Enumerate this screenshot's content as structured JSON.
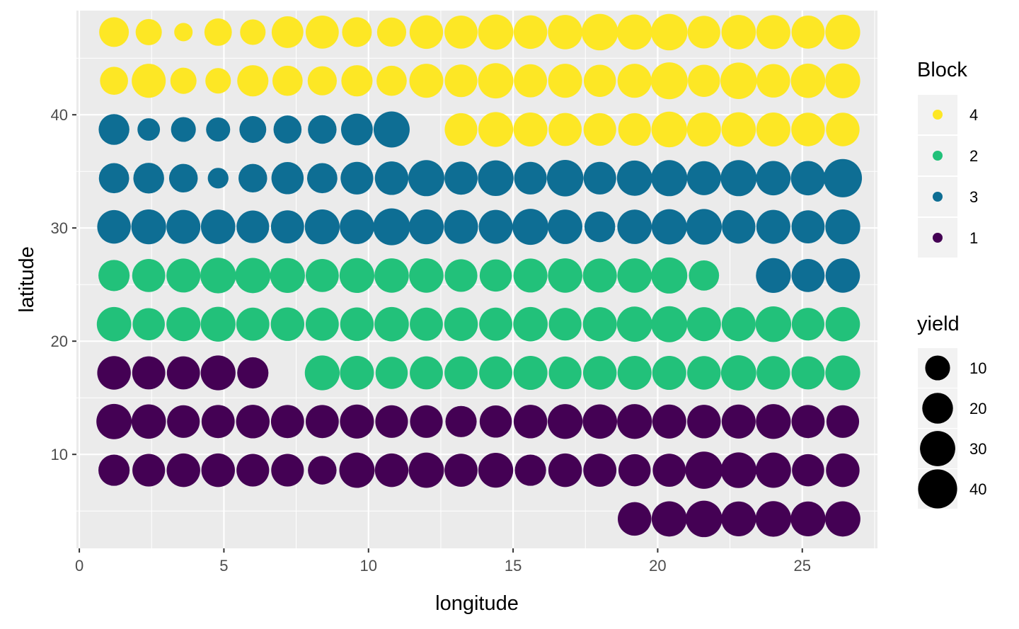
{
  "chart_data": {
    "type": "scatter",
    "xlabel": "longitude",
    "ylabel": "latitude",
    "xlim": [
      -0.1,
      27.6
    ],
    "ylim": [
      1.7,
      49.2
    ],
    "x_ticks": [
      0,
      5,
      10,
      15,
      20,
      25
    ],
    "y_ticks": [
      10,
      20,
      30,
      40
    ],
    "x_tick_labels": [
      "0",
      "5",
      "10",
      "15",
      "20",
      "25"
    ],
    "y_tick_labels": [
      "10",
      "20",
      "30",
      "40"
    ],
    "grid": true,
    "legend_position": "right",
    "color_legend": {
      "title": "Block",
      "entries": [
        {
          "label": "4",
          "color": "#FDE725"
        },
        {
          "label": "2",
          "color": "#22C17A"
        },
        {
          "label": "3",
          "color": "#0E6E94"
        },
        {
          "label": "1",
          "color": "#440154"
        }
      ]
    },
    "size_legend": {
      "title": "yield",
      "entries": [
        {
          "label": "10",
          "value": 10
        },
        {
          "label": "20",
          "value": 20
        },
        {
          "label": "30",
          "value": 30
        },
        {
          "label": "40",
          "value": 40
        }
      ]
    },
    "columns_x": [
      1.2,
      2.4,
      3.6,
      4.8,
      6.0,
      7.2,
      8.4,
      9.6,
      10.8,
      12.0,
      13.2,
      14.4,
      15.6,
      16.8,
      18.0,
      19.2,
      20.4,
      21.6,
      22.8,
      24.0,
      25.2,
      26.4
    ],
    "rows": [
      {
        "lat": 47.3,
        "block": [
          "4",
          "4",
          "4",
          "4",
          "4",
          "4",
          "4",
          "4",
          "4",
          "4",
          "4",
          "4",
          "4",
          "4",
          "4",
          "4",
          "4",
          "4",
          "4",
          "4",
          "4",
          "4"
        ],
        "yield": [
          18,
          12,
          3,
          14,
          11,
          22,
          25,
          18,
          17,
          26,
          25,
          30,
          26,
          28,
          33,
          30,
          33,
          24,
          28,
          27,
          25,
          29
        ]
      },
      {
        "lat": 43.0,
        "block": [
          "4",
          "4",
          "4",
          "4",
          "4",
          "4",
          "4",
          "4",
          "4",
          "4",
          "4",
          "4",
          "4",
          "4",
          "4",
          "4",
          "4",
          "4",
          "4",
          "4",
          "4",
          "4"
        ],
        "yield": [
          15,
          27,
          12,
          11,
          21,
          19,
          17,
          21,
          19,
          27,
          24,
          30,
          25,
          27,
          23,
          27,
          34,
          23,
          33,
          26,
          28,
          29
        ]
      },
      {
        "lat": 38.7,
        "block": [
          "3",
          "3",
          "3",
          "3",
          "3",
          "3",
          "3",
          "3",
          "3",
          null,
          "4",
          "4",
          "4",
          "4",
          "4",
          "4",
          "4",
          "4",
          "4",
          "4",
          "4",
          "4"
        ],
        "yield": [
          20,
          7,
          10,
          9,
          13,
          15,
          16,
          22,
          32,
          null,
          24,
          29,
          27,
          25,
          24,
          24,
          31,
          27,
          28,
          27,
          26,
          26
        ]
      },
      {
        "lat": 34.4,
        "block": [
          "3",
          "3",
          "3",
          "3",
          "3",
          "3",
          "3",
          "3",
          "3",
          "3",
          "3",
          "3",
          "3",
          "3",
          "3",
          "3",
          "3",
          "3",
          "3",
          "3",
          "3",
          "3"
        ],
        "yield": [
          19,
          20,
          16,
          5,
          16,
          23,
          19,
          24,
          26,
          32,
          25,
          31,
          24,
          33,
          24,
          30,
          32,
          27,
          32,
          28,
          28,
          38
        ]
      },
      {
        "lat": 30.1,
        "block": [
          "3",
          "3",
          "3",
          "3",
          "3",
          "3",
          "3",
          "3",
          "3",
          "3",
          "3",
          "3",
          "3",
          "3",
          "3",
          "3",
          "3",
          "3",
          "3",
          "3",
          "3",
          "3"
        ],
        "yield": [
          26,
          29,
          27,
          28,
          24,
          25,
          29,
          28,
          34,
          29,
          27,
          27,
          32,
          28,
          20,
          28,
          30,
          31,
          26,
          27,
          25,
          29
        ]
      },
      {
        "lat": 25.8,
        "block": [
          "2",
          "2",
          "2",
          "2",
          "2",
          "2",
          "2",
          "2",
          "2",
          "2",
          "2",
          "2",
          "2",
          "2",
          "2",
          "2",
          "2",
          "2",
          null,
          "3",
          "3",
          "3"
        ],
        "yield": [
          21,
          25,
          27,
          31,
          30,
          29,
          25,
          29,
          28,
          28,
          24,
          23,
          27,
          28,
          27,
          28,
          32,
          19,
          null,
          29,
          25,
          28
        ]
      },
      {
        "lat": 21.5,
        "block": [
          "2",
          "2",
          "2",
          "2",
          "2",
          "2",
          "2",
          "2",
          "2",
          "2",
          "2",
          "2",
          "2",
          "2",
          "2",
          "2",
          "2",
          "2",
          "2",
          "2",
          "2",
          "2"
        ],
        "yield": [
          28,
          23,
          27,
          29,
          25,
          26,
          25,
          26,
          28,
          25,
          26,
          25,
          28,
          24,
          27,
          30,
          32,
          27,
          27,
          31,
          24,
          28
        ]
      },
      {
        "lat": 17.2,
        "block": [
          "1",
          "1",
          "1",
          "1",
          "1",
          null,
          "2",
          "2",
          "2",
          "2",
          "2",
          "2",
          "2",
          "2",
          "2",
          "2",
          "2",
          "2",
          "2",
          "2",
          "2",
          "2"
        ],
        "yield": [
          26,
          25,
          25,
          29,
          21,
          null,
          29,
          27,
          23,
          25,
          25,
          25,
          27,
          24,
          26,
          27,
          27,
          26,
          30,
          26,
          25,
          29
        ]
      },
      {
        "lat": 12.9,
        "block": [
          "1",
          "1",
          "1",
          "1",
          "1",
          "1",
          "1",
          "1",
          "1",
          "1",
          "1",
          "1",
          "1",
          "1",
          "1",
          "1",
          "1",
          "1",
          "1",
          "1",
          "1",
          "1"
        ],
        "yield": [
          30,
          28,
          24,
          25,
          26,
          25,
          25,
          27,
          24,
          24,
          21,
          23,
          26,
          29,
          28,
          29,
          27,
          26,
          27,
          29,
          25,
          24
        ]
      },
      {
        "lat": 8.6,
        "block": [
          "1",
          "1",
          "1",
          "1",
          "1",
          "1",
          "1",
          "1",
          "1",
          "1",
          "1",
          "1",
          "1",
          "1",
          "1",
          "1",
          "1",
          "1",
          "1",
          "1",
          "1",
          "1"
        ],
        "yield": [
          21,
          24,
          26,
          26,
          24,
          24,
          16,
          30,
          26,
          30,
          25,
          29,
          21,
          26,
          25,
          23,
          25,
          35,
          31,
          30,
          23,
          26
        ]
      },
      {
        "lat": 4.3,
        "block": [
          null,
          null,
          null,
          null,
          null,
          null,
          null,
          null,
          null,
          null,
          null,
          null,
          null,
          null,
          null,
          "1",
          "1",
          "1",
          "1",
          "1",
          "1",
          "1"
        ],
        "yield": [
          null,
          null,
          null,
          null,
          null,
          null,
          null,
          null,
          null,
          null,
          null,
          null,
          null,
          null,
          null,
          26,
          30,
          33,
          29,
          31,
          29,
          30
        ]
      }
    ]
  }
}
